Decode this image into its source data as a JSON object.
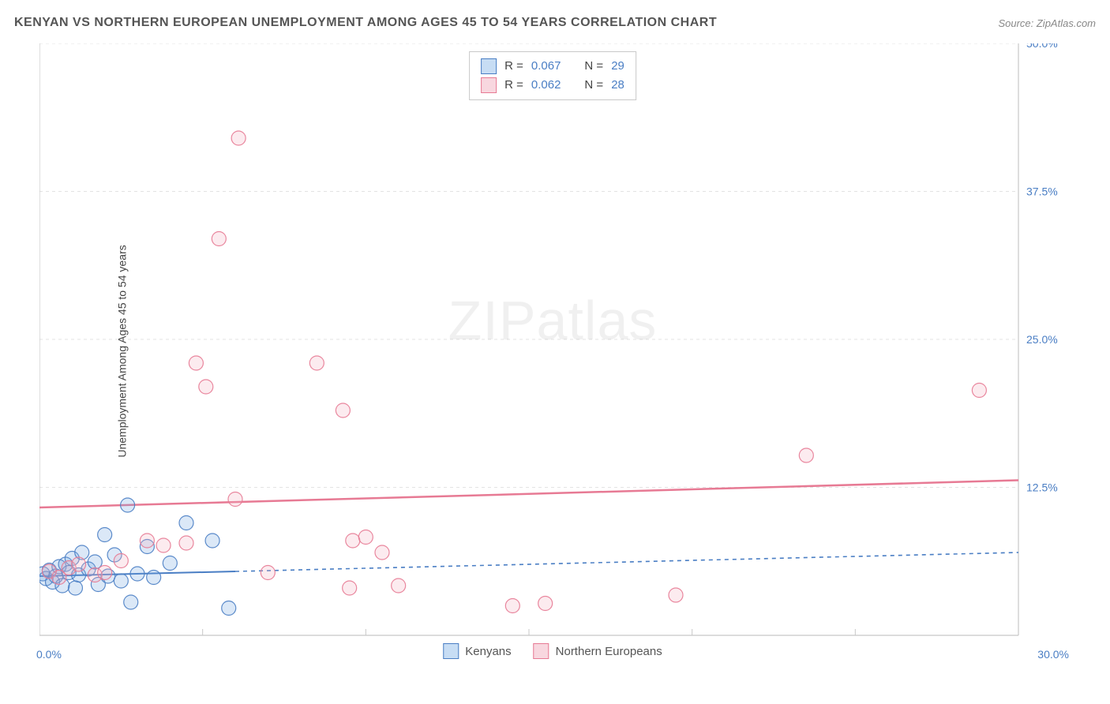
{
  "header": {
    "title": "KENYAN VS NORTHERN EUROPEAN UNEMPLOYMENT AMONG AGES 45 TO 54 YEARS CORRELATION CHART",
    "source": "Source: ZipAtlas.com"
  },
  "watermark": {
    "bold": "ZIP",
    "light": "atlas"
  },
  "chart": {
    "type": "scatter",
    "ylabel": "Unemployment Among Ages 45 to 54 years",
    "xlim": [
      0,
      30
    ],
    "ylim": [
      0,
      50
    ],
    "xtick_major": [
      0,
      30
    ],
    "xtick_minor": [
      5,
      10,
      15,
      20,
      25
    ],
    "ytick_labels": [
      "0.0%",
      "12.5%",
      "25.0%",
      "37.5%",
      "50.0%"
    ],
    "xtick_labels": [
      "0.0%",
      "30.0%"
    ],
    "grid_color": "#e3e3e3",
    "axis_color": "#c8c8c8",
    "axis_label_color": "#4a7ec4",
    "background": "#ffffff",
    "marker_radius": 9,
    "marker_opacity_fill": 0.25,
    "marker_opacity_stroke": 0.9,
    "series": [
      {
        "name": "Kenyans",
        "color": "#6fa3e0",
        "stroke": "#4a7ec4",
        "trend": {
          "y0": 5.0,
          "y1": 7.0,
          "dash": "5,5",
          "solid_until_x": 6.0,
          "width": 2
        },
        "stats": {
          "R": "0.067",
          "N": "29"
        },
        "points": [
          [
            0.1,
            5.2
          ],
          [
            0.2,
            4.8
          ],
          [
            0.3,
            5.5
          ],
          [
            0.4,
            4.5
          ],
          [
            0.5,
            5.0
          ],
          [
            0.6,
            5.8
          ],
          [
            0.7,
            4.2
          ],
          [
            0.8,
            6.0
          ],
          [
            0.9,
            5.3
          ],
          [
            1.0,
            6.5
          ],
          [
            1.1,
            4.0
          ],
          [
            1.2,
            5.1
          ],
          [
            1.3,
            7.0
          ],
          [
            1.5,
            5.6
          ],
          [
            1.7,
            6.2
          ],
          [
            1.8,
            4.3
          ],
          [
            2.0,
            8.5
          ],
          [
            2.1,
            5.0
          ],
          [
            2.3,
            6.8
          ],
          [
            2.5,
            4.6
          ],
          [
            2.7,
            11.0
          ],
          [
            2.8,
            2.8
          ],
          [
            3.0,
            5.2
          ],
          [
            3.3,
            7.5
          ],
          [
            3.5,
            4.9
          ],
          [
            4.0,
            6.1
          ],
          [
            4.5,
            9.5
          ],
          [
            5.3,
            8.0
          ],
          [
            5.8,
            2.3
          ]
        ]
      },
      {
        "name": "Northern Europeans",
        "color": "#f2b1c0",
        "stroke": "#e77a94",
        "trend": {
          "y0": 10.8,
          "y1": 13.1,
          "dash": "",
          "solid_until_x": 30,
          "width": 2.5
        },
        "stats": {
          "R": "0.062",
          "N": "28"
        },
        "points": [
          [
            0.3,
            5.4
          ],
          [
            0.6,
            4.9
          ],
          [
            0.9,
            5.7
          ],
          [
            1.2,
            6.0
          ],
          [
            1.7,
            5.1
          ],
          [
            2.0,
            5.3
          ],
          [
            2.5,
            6.3
          ],
          [
            3.3,
            8.0
          ],
          [
            3.8,
            7.6
          ],
          [
            4.5,
            7.8
          ],
          [
            4.8,
            23.0
          ],
          [
            5.1,
            21.0
          ],
          [
            5.5,
            33.5
          ],
          [
            6.0,
            11.5
          ],
          [
            6.1,
            42.0
          ],
          [
            7.0,
            5.3
          ],
          [
            8.5,
            23.0
          ],
          [
            9.3,
            19.0
          ],
          [
            9.5,
            4.0
          ],
          [
            9.6,
            8.0
          ],
          [
            10.0,
            8.3
          ],
          [
            10.5,
            7.0
          ],
          [
            11.0,
            4.2
          ],
          [
            14.5,
            2.5
          ],
          [
            15.5,
            2.7
          ],
          [
            19.5,
            3.4
          ],
          [
            23.5,
            15.2
          ],
          [
            28.8,
            20.7
          ]
        ]
      }
    ],
    "bottom_legend": [
      {
        "label": "Kenyans",
        "fill": "#c7ddf4",
        "border": "#4a7ec4"
      },
      {
        "label": "Northern Europeans",
        "fill": "#f8d7df",
        "border": "#e77a94"
      }
    ],
    "stat_legend_swatches": [
      {
        "fill": "#c7ddf4",
        "border": "#4a7ec4"
      },
      {
        "fill": "#f8d7df",
        "border": "#e77a94"
      }
    ]
  }
}
